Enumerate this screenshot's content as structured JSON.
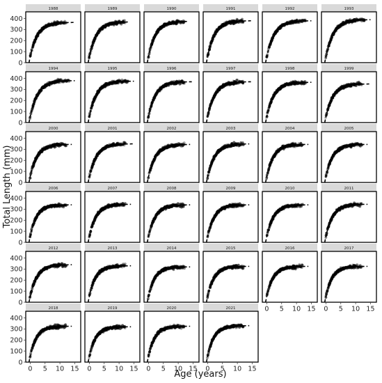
{
  "chart_data": {
    "type": "scatter",
    "subtype": "faceted-scatter-with-growth-curve",
    "xlabel": "Age (years)",
    "ylabel": "Total Length (mm)",
    "xlim": [
      -1.5,
      17
    ],
    "ylim": [
      0,
      460
    ],
    "x_ticks": [
      0,
      5,
      10,
      15
    ],
    "y_ticks": [
      0,
      100,
      200,
      300,
      400
    ],
    "grid": false,
    "facet_columns": 6,
    "point_color": "#000000",
    "point_opacity": 0.35,
    "panels": [
      {
        "year": "1988",
        "Linf": 365,
        "K": 0.4,
        "t0": -0.4,
        "max_obs_age": 12,
        "line_end": 15
      },
      {
        "year": "1989",
        "Linf": 370,
        "K": 0.4,
        "t0": -0.4,
        "max_obs_age": 12,
        "line_end": 13
      },
      {
        "year": "1990",
        "Linf": 375,
        "K": 0.4,
        "t0": -0.4,
        "max_obs_age": 12,
        "line_end": 13
      },
      {
        "year": "1991",
        "Linf": 380,
        "K": 0.4,
        "t0": -0.4,
        "max_obs_age": 12,
        "line_end": 15
      },
      {
        "year": "1992",
        "Linf": 380,
        "K": 0.38,
        "t0": -0.4,
        "max_obs_age": 13,
        "line_end": 15
      },
      {
        "year": "1993",
        "Linf": 390,
        "K": 0.38,
        "t0": -0.4,
        "max_obs_age": 13,
        "line_end": 15
      },
      {
        "year": "1994",
        "Linf": 380,
        "K": 0.38,
        "t0": -0.4,
        "max_obs_age": 13,
        "line_end": 15
      },
      {
        "year": "1995",
        "Linf": 375,
        "K": 0.4,
        "t0": -0.4,
        "max_obs_age": 13,
        "line_end": 15
      },
      {
        "year": "1996",
        "Linf": 370,
        "K": 0.4,
        "t0": -0.4,
        "max_obs_age": 12,
        "line_end": 15
      },
      {
        "year": "1997",
        "Linf": 370,
        "K": 0.4,
        "t0": -0.4,
        "max_obs_age": 12,
        "line_end": 15
      },
      {
        "year": "1998",
        "Linf": 365,
        "K": 0.4,
        "t0": -0.4,
        "max_obs_age": 13,
        "line_end": 15
      },
      {
        "year": "1999",
        "Linf": 350,
        "K": 0.4,
        "t0": -0.4,
        "max_obs_age": 12,
        "line_end": 15
      },
      {
        "year": "2000",
        "Linf": 345,
        "K": 0.42,
        "t0": -0.4,
        "max_obs_age": 12,
        "line_end": 14
      },
      {
        "year": "2001",
        "Linf": 350,
        "K": 0.4,
        "t0": -0.4,
        "max_obs_age": 12,
        "line_end": 15
      },
      {
        "year": "2002",
        "Linf": 345,
        "K": 0.4,
        "t0": -0.4,
        "max_obs_age": 12,
        "line_end": 14
      },
      {
        "year": "2003",
        "Linf": 350,
        "K": 0.4,
        "t0": -0.4,
        "max_obs_age": 12,
        "line_end": 14
      },
      {
        "year": "2004",
        "Linf": 345,
        "K": 0.42,
        "t0": -0.4,
        "max_obs_age": 12,
        "line_end": 14
      },
      {
        "year": "2005",
        "Linf": 345,
        "K": 0.42,
        "t0": -0.4,
        "max_obs_age": 12,
        "line_end": 14
      },
      {
        "year": "2006",
        "Linf": 340,
        "K": 0.45,
        "t0": -0.4,
        "max_obs_age": 12,
        "line_end": 14
      },
      {
        "year": "2007",
        "Linf": 345,
        "K": 0.42,
        "t0": -0.4,
        "max_obs_age": 12,
        "line_end": 14
      },
      {
        "year": "2008",
        "Linf": 340,
        "K": 0.42,
        "t0": -0.4,
        "max_obs_age": 12,
        "line_end": 14
      },
      {
        "year": "2009",
        "Linf": 340,
        "K": 0.42,
        "t0": -0.4,
        "max_obs_age": 12,
        "line_end": 14
      },
      {
        "year": "2010",
        "Linf": 340,
        "K": 0.42,
        "t0": -0.4,
        "max_obs_age": 12,
        "line_end": 14
      },
      {
        "year": "2011",
        "Linf": 345,
        "K": 0.42,
        "t0": -0.4,
        "max_obs_age": 12,
        "line_end": 14
      },
      {
        "year": "2012",
        "Linf": 340,
        "K": 0.42,
        "t0": -0.4,
        "max_obs_age": 12,
        "line_end": 14
      },
      {
        "year": "2013",
        "Linf": 330,
        "K": 0.45,
        "t0": -0.4,
        "max_obs_age": 12,
        "line_end": 14
      },
      {
        "year": "2014",
        "Linf": 320,
        "K": 0.45,
        "t0": -0.4,
        "max_obs_age": 12,
        "line_end": 14
      },
      {
        "year": "2015",
        "Linf": 325,
        "K": 0.45,
        "t0": -0.4,
        "max_obs_age": 12,
        "line_end": 14
      },
      {
        "year": "2016",
        "Linf": 325,
        "K": 0.45,
        "t0": -0.4,
        "max_obs_age": 12,
        "line_end": 14
      },
      {
        "year": "2017",
        "Linf": 325,
        "K": 0.45,
        "t0": -0.4,
        "max_obs_age": 12,
        "line_end": 14
      },
      {
        "year": "2018",
        "Linf": 325,
        "K": 0.45,
        "t0": -0.4,
        "max_obs_age": 12,
        "line_end": 14
      },
      {
        "year": "2019",
        "Linf": 320,
        "K": 0.45,
        "t0": -0.4,
        "max_obs_age": 12,
        "line_end": 14
      },
      {
        "year": "2020",
        "Linf": 325,
        "K": 0.45,
        "t0": -0.4,
        "max_obs_age": 12,
        "line_end": 14
      },
      {
        "year": "2021",
        "Linf": 330,
        "K": 0.45,
        "t0": -0.4,
        "max_obs_age": 12,
        "line_end": 14
      }
    ]
  }
}
